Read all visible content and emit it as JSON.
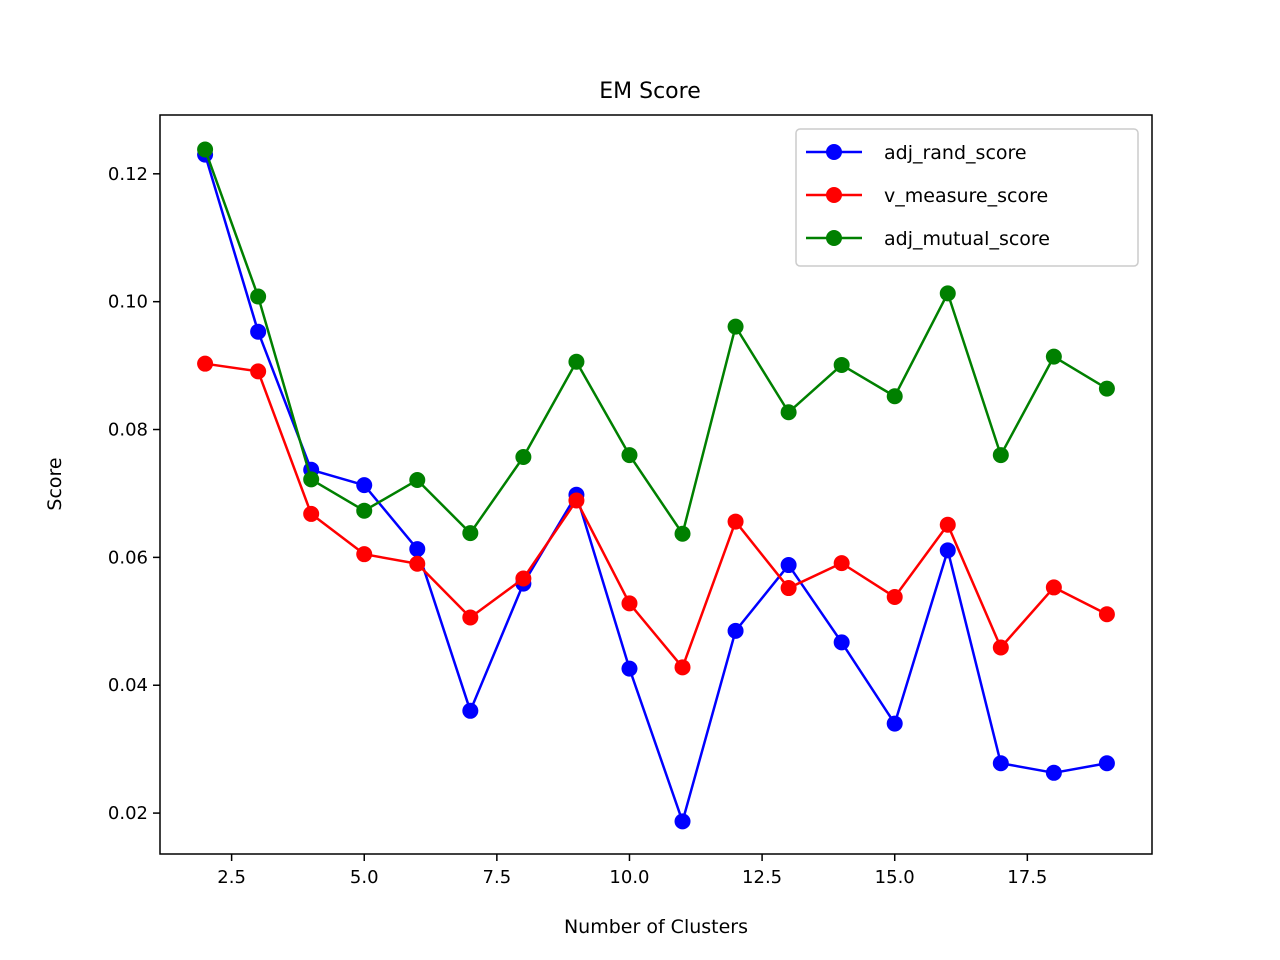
{
  "chart_data": {
    "type": "line",
    "title": "EM Score",
    "xlabel": "Number of Clusters",
    "ylabel": "Score",
    "xlim": [
      1.15,
      19.85
    ],
    "ylim": [
      0.0136,
      0.1292
    ],
    "xticks": [
      2.5,
      5.0,
      7.5,
      10.0,
      12.5,
      15.0,
      17.5
    ],
    "xtick_labels": [
      "2.5",
      "5.0",
      "7.5",
      "10.0",
      "12.5",
      "15.0",
      "17.5"
    ],
    "yticks": [
      0.02,
      0.04,
      0.06,
      0.08,
      0.1,
      0.12
    ],
    "ytick_labels": [
      "0.02",
      "0.04",
      "0.06",
      "0.08",
      "0.10",
      "0.12"
    ],
    "grid": false,
    "legend": "top-right",
    "x": [
      2,
      3,
      4,
      5,
      6,
      7,
      8,
      9,
      10,
      11,
      12,
      13,
      14,
      15,
      16,
      17,
      18,
      19
    ],
    "series": [
      {
        "name": "adj_rand_score",
        "color": "#0000ff",
        "values": [
          0.123,
          0.0953,
          0.0737,
          0.0713,
          0.0613,
          0.036,
          0.0559,
          0.0698,
          0.0426,
          0.0187,
          0.0485,
          0.0588,
          0.0467,
          0.034,
          0.0611,
          0.0278,
          0.0263,
          0.0278
        ]
      },
      {
        "name": "v_measure_score",
        "color": "#ff0000",
        "values": [
          0.0903,
          0.0891,
          0.0668,
          0.0605,
          0.059,
          0.0506,
          0.0567,
          0.0689,
          0.0528,
          0.0428,
          0.0656,
          0.0552,
          0.0591,
          0.0538,
          0.0651,
          0.0459,
          0.0553,
          0.0511
        ]
      },
      {
        "name": "adj_mutual_score",
        "color": "#008000",
        "values": [
          0.1238,
          0.1008,
          0.0722,
          0.0673,
          0.0721,
          0.0638,
          0.0757,
          0.0906,
          0.076,
          0.0637,
          0.0961,
          0.0827,
          0.0901,
          0.0852,
          0.1013,
          0.076,
          0.0914,
          0.0864
        ]
      }
    ]
  }
}
